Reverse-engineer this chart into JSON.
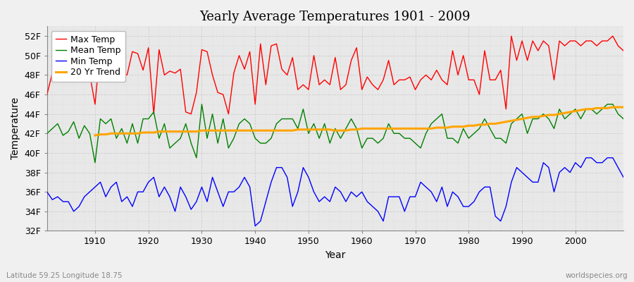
{
  "title": "Yearly Average Temperatures 1901 - 2009",
  "xlabel": "Year",
  "ylabel": "Temperature",
  "lat_lon_label": "Latitude 59.25 Longitude 18.75",
  "source_label": "worldspecies.org",
  "years": [
    1901,
    1902,
    1903,
    1904,
    1905,
    1906,
    1907,
    1908,
    1909,
    1910,
    1911,
    1912,
    1913,
    1914,
    1915,
    1916,
    1917,
    1918,
    1919,
    1920,
    1921,
    1922,
    1923,
    1924,
    1925,
    1926,
    1927,
    1928,
    1929,
    1930,
    1931,
    1932,
    1933,
    1934,
    1935,
    1936,
    1937,
    1938,
    1939,
    1940,
    1941,
    1942,
    1943,
    1944,
    1945,
    1946,
    1947,
    1948,
    1949,
    1950,
    1951,
    1952,
    1953,
    1954,
    1955,
    1956,
    1957,
    1958,
    1959,
    1960,
    1961,
    1962,
    1963,
    1964,
    1965,
    1966,
    1967,
    1968,
    1969,
    1970,
    1971,
    1972,
    1973,
    1974,
    1975,
    1976,
    1977,
    1978,
    1979,
    1980,
    1981,
    1982,
    1983,
    1984,
    1985,
    1986,
    1987,
    1988,
    1989,
    1990,
    1991,
    1992,
    1993,
    1994,
    1995,
    1996,
    1997,
    1998,
    1999,
    2000,
    2001,
    2002,
    2003,
    2004,
    2005,
    2006,
    2007,
    2008,
    2009
  ],
  "max_temp": [
    46.0,
    48.2,
    48.5,
    48.0,
    48.1,
    48.3,
    48.2,
    48.0,
    48.1,
    45.0,
    50.8,
    48.8,
    48.4,
    50.6,
    48.2,
    48.0,
    50.4,
    50.2,
    48.5,
    50.8,
    44.0,
    50.6,
    48.0,
    48.4,
    48.2,
    48.6,
    44.2,
    44.0,
    46.2,
    50.6,
    50.4,
    48.0,
    46.2,
    46.0,
    44.0,
    48.2,
    50.0,
    48.6,
    50.4,
    45.0,
    51.2,
    47.0,
    51.0,
    51.2,
    48.6,
    48.0,
    49.8,
    46.5,
    47.0,
    46.5,
    50.0,
    47.0,
    47.5,
    47.0,
    49.8,
    46.5,
    47.0,
    49.5,
    50.8,
    46.5,
    47.8,
    47.0,
    46.5,
    47.5,
    49.5,
    47.0,
    47.5,
    47.5,
    47.8,
    46.5,
    47.5,
    48.0,
    47.5,
    48.5,
    47.5,
    47.0,
    50.5,
    48.0,
    50.0,
    47.5,
    47.5,
    46.0,
    50.5,
    47.5,
    47.5,
    48.5,
    44.5,
    52.0,
    49.5,
    51.5,
    49.5,
    51.5,
    50.5,
    51.5,
    51.0,
    47.5,
    51.5,
    51.0,
    51.5,
    51.5,
    51.0,
    51.5,
    51.5,
    51.0,
    51.5,
    51.5,
    52.0,
    51.0,
    50.5
  ],
  "mean_temp": [
    42.0,
    42.5,
    43.0,
    41.8,
    42.2,
    43.2,
    41.5,
    42.8,
    42.0,
    39.0,
    43.5,
    43.0,
    43.5,
    41.5,
    42.5,
    41.0,
    43.0,
    41.0,
    43.5,
    43.5,
    44.2,
    41.5,
    43.0,
    40.5,
    41.0,
    41.5,
    43.0,
    41.0,
    39.5,
    45.0,
    41.5,
    44.0,
    41.0,
    43.5,
    40.5,
    41.5,
    43.0,
    43.5,
    43.0,
    41.5,
    41.0,
    41.0,
    41.5,
    43.0,
    43.5,
    43.5,
    43.5,
    42.5,
    44.5,
    42.0,
    43.0,
    41.5,
    43.0,
    41.0,
    42.5,
    41.5,
    42.5,
    43.5,
    42.5,
    40.5,
    41.5,
    41.5,
    41.0,
    41.5,
    43.0,
    42.0,
    42.0,
    41.5,
    41.5,
    41.0,
    40.5,
    42.0,
    43.0,
    43.5,
    44.0,
    41.5,
    41.5,
    41.0,
    42.5,
    41.5,
    42.0,
    42.5,
    43.5,
    42.5,
    41.5,
    41.5,
    41.0,
    43.0,
    43.5,
    44.0,
    42.0,
    43.5,
    43.5,
    44.0,
    43.5,
    42.5,
    44.5,
    43.5,
    44.0,
    44.5,
    43.5,
    44.5,
    44.5,
    44.0,
    44.5,
    45.0,
    45.0,
    44.0,
    43.5
  ],
  "min_temp": [
    36.0,
    35.2,
    35.5,
    35.0,
    35.0,
    34.0,
    34.5,
    35.5,
    36.0,
    36.5,
    37.0,
    35.5,
    36.5,
    37.0,
    35.0,
    35.5,
    34.5,
    36.0,
    36.0,
    37.0,
    37.5,
    35.5,
    36.5,
    35.5,
    34.0,
    36.5,
    35.5,
    34.2,
    35.0,
    36.5,
    35.0,
    37.5,
    36.0,
    34.5,
    36.0,
    36.0,
    36.5,
    37.5,
    36.5,
    32.5,
    33.0,
    35.0,
    37.0,
    38.5,
    38.5,
    37.5,
    34.5,
    36.0,
    38.5,
    37.5,
    36.0,
    35.0,
    35.5,
    35.0,
    36.5,
    36.0,
    35.0,
    36.0,
    35.5,
    36.0,
    35.0,
    34.5,
    34.0,
    33.0,
    35.5,
    35.5,
    35.5,
    34.0,
    35.5,
    35.5,
    37.0,
    36.5,
    36.0,
    35.0,
    36.5,
    34.5,
    36.0,
    35.5,
    34.5,
    34.5,
    35.0,
    36.0,
    36.5,
    36.5,
    33.5,
    33.0,
    34.5,
    37.0,
    38.5,
    38.0,
    37.5,
    37.0,
    37.0,
    39.0,
    38.5,
    36.0,
    38.0,
    38.5,
    38.0,
    39.0,
    38.5,
    39.5,
    39.5,
    39.0,
    39.0,
    39.5,
    39.5,
    38.5,
    37.5
  ],
  "trend_years": [
    1910,
    1911,
    1912,
    1913,
    1914,
    1915,
    1916,
    1917,
    1918,
    1919,
    1920,
    1921,
    1922,
    1923,
    1924,
    1925,
    1926,
    1927,
    1928,
    1929,
    1930,
    1931,
    1932,
    1933,
    1934,
    1935,
    1936,
    1937,
    1938,
    1939,
    1940,
    1941,
    1942,
    1943,
    1944,
    1945,
    1946,
    1947,
    1948,
    1949,
    1950,
    1951,
    1952,
    1953,
    1954,
    1955,
    1956,
    1957,
    1958,
    1959,
    1960,
    1961,
    1962,
    1963,
    1964,
    1965,
    1966,
    1967,
    1968,
    1969,
    1970,
    1971,
    1972,
    1973,
    1974,
    1975,
    1976,
    1977,
    1978,
    1979,
    1980,
    1981,
    1982,
    1983,
    1984,
    1985,
    1986,
    1987,
    1988,
    1989,
    1990,
    1991,
    1992,
    1993,
    1994,
    1995,
    1996,
    1997,
    1998,
    1999,
    2000,
    2001,
    2002,
    2003,
    2004,
    2005,
    2006,
    2007,
    2008,
    2009
  ],
  "trend_values": [
    41.8,
    41.9,
    41.9,
    42.0,
    42.0,
    42.0,
    42.0,
    42.0,
    42.0,
    42.1,
    42.1,
    42.1,
    42.2,
    42.2,
    42.2,
    42.2,
    42.2,
    42.2,
    42.2,
    42.2,
    42.3,
    42.3,
    42.3,
    42.3,
    42.3,
    42.3,
    42.3,
    42.3,
    42.3,
    42.3,
    42.3,
    42.3,
    42.3,
    42.3,
    42.3,
    42.3,
    42.3,
    42.3,
    42.4,
    42.4,
    42.4,
    42.4,
    42.4,
    42.4,
    42.4,
    42.3,
    42.3,
    42.3,
    42.4,
    42.4,
    42.5,
    42.5,
    42.5,
    42.5,
    42.5,
    42.5,
    42.5,
    42.5,
    42.5,
    42.5,
    42.5,
    42.5,
    42.5,
    42.5,
    42.6,
    42.6,
    42.6,
    42.7,
    42.7,
    42.7,
    42.8,
    42.8,
    42.9,
    42.9,
    43.0,
    43.0,
    43.1,
    43.2,
    43.3,
    43.4,
    43.5,
    43.6,
    43.7,
    43.7,
    43.8,
    43.9,
    43.9,
    44.0,
    44.1,
    44.2,
    44.3,
    44.4,
    44.5,
    44.5,
    44.6,
    44.6,
    44.6,
    44.7,
    44.7,
    44.7
  ],
  "max_color": "#ff0000",
  "mean_color": "#008000",
  "min_color": "#0000ff",
  "trend_color": "#ffa500",
  "bg_color": "#f0f0f0",
  "plot_bg_color": "#e8e8e8",
  "grid_color": "#cccccc",
  "ylim_min": 32,
  "ylim_max": 53,
  "yticks": [
    32,
    34,
    36,
    38,
    40,
    42,
    44,
    46,
    48,
    50,
    52
  ],
  "ytick_labels": [
    "32F",
    "34F",
    "36F",
    "38F",
    "40F",
    "42F",
    "44F",
    "46F",
    "48F",
    "50F",
    "52F"
  ],
  "title_fontsize": 13,
  "axis_label_fontsize": 10,
  "tick_fontsize": 9,
  "legend_fontsize": 9
}
